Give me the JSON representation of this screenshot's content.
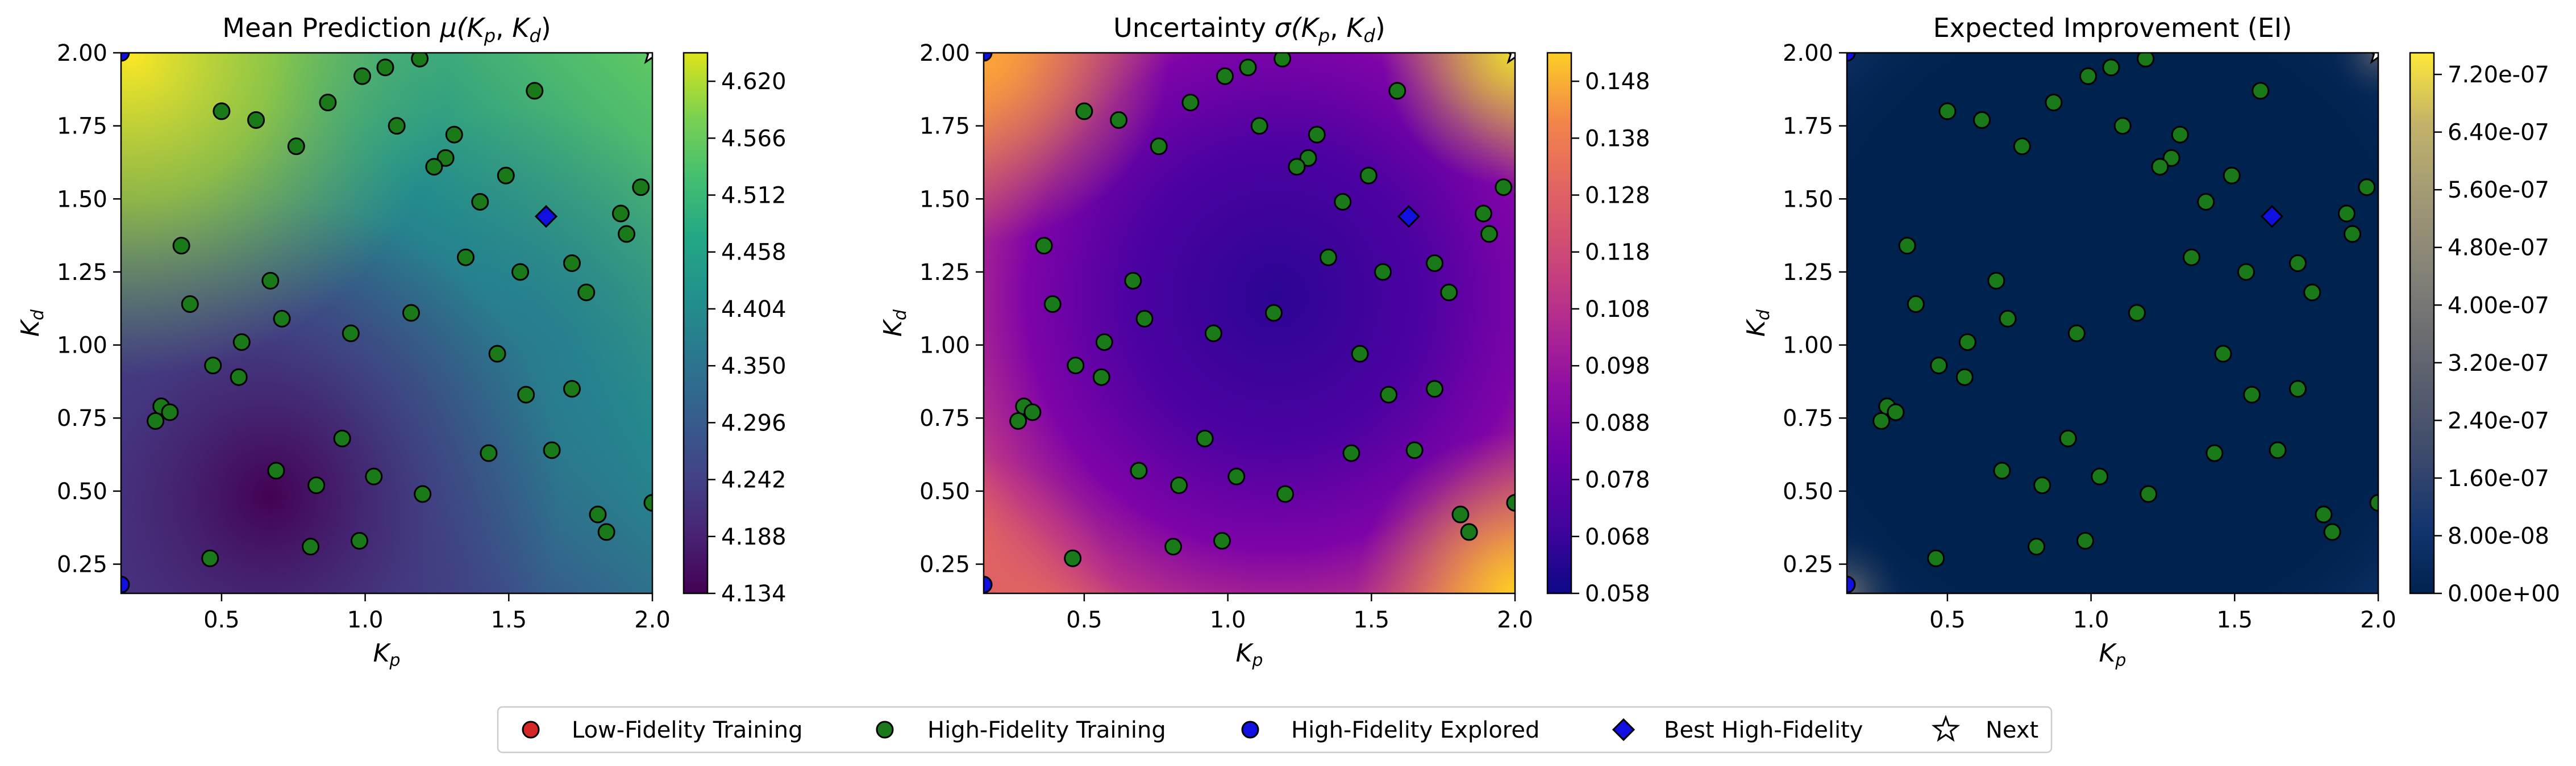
{
  "chart_data": [
    {
      "type": "heatmap",
      "title_main": "Mean Prediction ",
      "title_math": "μ(K",
      "xlabel": "K",
      "xlabel_sub": "p",
      "ylabel": "K",
      "ylabel_sub": "d",
      "xlim": [
        0.15,
        2.0
      ],
      "ylim": [
        0.15,
        2.0
      ],
      "xticks": [
        "0.5",
        "1.0",
        "1.5",
        "2.0"
      ],
      "yticks": [
        "0.25",
        "0.50",
        "0.75",
        "1.00",
        "1.25",
        "1.50",
        "1.75",
        "2.00"
      ],
      "colormap": "viridis",
      "colorbar_ticks": [
        "4.134",
        "4.188",
        "4.242",
        "4.296",
        "4.350",
        "4.404",
        "4.458",
        "4.512",
        "4.566",
        "4.620"
      ],
      "colorbar_range": [
        4.134,
        4.647
      ]
    },
    {
      "type": "heatmap",
      "title_main": "Uncertainty ",
      "title_math": "σ(K",
      "xlabel": "K",
      "xlabel_sub": "p",
      "ylabel": "K",
      "ylabel_sub": "d",
      "xlim": [
        0.15,
        2.0
      ],
      "ylim": [
        0.15,
        2.0
      ],
      "xticks": [
        "0.5",
        "1.0",
        "1.5",
        "2.0"
      ],
      "yticks": [
        "0.25",
        "0.50",
        "0.75",
        "1.00",
        "1.25",
        "1.50",
        "1.75",
        "2.00"
      ],
      "colormap": "plasma",
      "colorbar_ticks": [
        "0.058",
        "0.068",
        "0.078",
        "0.088",
        "0.098",
        "0.108",
        "0.118",
        "0.128",
        "0.138",
        "0.148"
      ],
      "colorbar_range": [
        0.058,
        0.153
      ]
    },
    {
      "type": "heatmap",
      "title_main": "Expected Improvement (EI)",
      "title_math": "",
      "xlabel": "K",
      "xlabel_sub": "p",
      "ylabel": "K",
      "ylabel_sub": "d",
      "xlim": [
        0.15,
        2.0
      ],
      "ylim": [
        0.15,
        2.0
      ],
      "xticks": [
        "0.5",
        "1.0",
        "1.5",
        "2.0"
      ],
      "yticks": [
        "0.25",
        "0.50",
        "0.75",
        "1.00",
        "1.25",
        "1.50",
        "1.75",
        "2.00"
      ],
      "colormap": "cividis",
      "colorbar_ticks": [
        "0.00e+00",
        "8.00e-08",
        "1.60e-07",
        "2.40e-07",
        "3.20e-07",
        "4.00e-07",
        "4.80e-07",
        "5.60e-07",
        "6.40e-07",
        "7.20e-07"
      ],
      "colorbar_range": [
        0,
        7.5e-07
      ]
    }
  ],
  "high_fidelity_training": [
    [
      0.5,
      1.8
    ],
    [
      0.62,
      1.77
    ],
    [
      0.76,
      1.68
    ],
    [
      0.87,
      1.83
    ],
    [
      0.99,
      1.92
    ],
    [
      1.07,
      1.95
    ],
    [
      1.19,
      1.98
    ],
    [
      1.11,
      1.75
    ],
    [
      1.31,
      1.72
    ],
    [
      1.28,
      1.64
    ],
    [
      1.24,
      1.61
    ],
    [
      1.59,
      1.87
    ],
    [
      1.49,
      1.58
    ],
    [
      1.96,
      1.54
    ],
    [
      1.89,
      1.45
    ],
    [
      1.91,
      1.38
    ],
    [
      1.4,
      1.49
    ],
    [
      1.35,
      1.3
    ],
    [
      1.54,
      1.25
    ],
    [
      1.72,
      1.28
    ],
    [
      1.77,
      1.18
    ],
    [
      0.36,
      1.34
    ],
    [
      0.39,
      1.14
    ],
    [
      0.67,
      1.22
    ],
    [
      0.71,
      1.09
    ],
    [
      1.16,
      1.11
    ],
    [
      0.95,
      1.04
    ],
    [
      1.46,
      0.97
    ],
    [
      0.57,
      1.01
    ],
    [
      0.47,
      0.93
    ],
    [
      0.56,
      0.89
    ],
    [
      1.56,
      0.83
    ],
    [
      1.72,
      0.85
    ],
    [
      0.29,
      0.79
    ],
    [
      0.32,
      0.77
    ],
    [
      0.27,
      0.74
    ],
    [
      0.92,
      0.68
    ],
    [
      1.65,
      0.64
    ],
    [
      1.43,
      0.63
    ],
    [
      0.69,
      0.57
    ],
    [
      1.03,
      0.55
    ],
    [
      0.83,
      0.52
    ],
    [
      1.2,
      0.49
    ],
    [
      1.81,
      0.42
    ],
    [
      1.84,
      0.36
    ],
    [
      2.0,
      0.46
    ],
    [
      0.81,
      0.31
    ],
    [
      0.98,
      0.33
    ],
    [
      0.46,
      0.27
    ]
  ],
  "high_fidelity_explored": [
    [
      0.15,
      2.0
    ],
    [
      0.15,
      0.18
    ]
  ],
  "best_high_fidelity": [
    1.63,
    1.44
  ],
  "next": [
    2.0,
    2.0
  ],
  "legend": {
    "low_fidelity": "Low-Fidelity Training",
    "high_fidelity": "High-Fidelity Training",
    "explored": "High-Fidelity Explored",
    "best": "Best High-Fidelity",
    "next": "Next"
  },
  "colors": {
    "low_fidelity": "#d62728",
    "high_fidelity": "#1a7a1a",
    "explored": "#1010e0",
    "best": "#1010e0",
    "marker_edge": "#000000"
  }
}
